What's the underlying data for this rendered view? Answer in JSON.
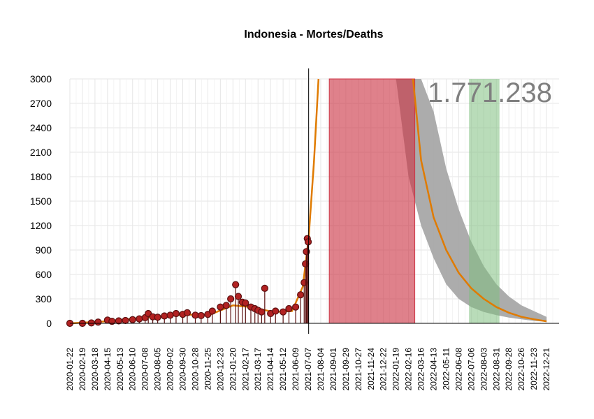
{
  "chart_data": {
    "type": "line",
    "title": "Indonesia - Mortes/Deaths",
    "xlabel": "",
    "ylabel": "",
    "ylim": [
      0,
      3000
    ],
    "yticks": [
      0,
      300,
      600,
      900,
      1200,
      1500,
      1800,
      2100,
      2400,
      2700,
      3000
    ],
    "xlim": [
      "2020-01-22",
      "2023-01-18"
    ],
    "xticks": [
      "2020-01-22",
      "2020-02-19",
      "2020-03-18",
      "2020-04-15",
      "2020-05-13",
      "2020-06-10",
      "2020-07-08",
      "2020-08-05",
      "2020-09-02",
      "2020-09-30",
      "2020-10-28",
      "2020-11-25",
      "2020-12-23",
      "2021-01-20",
      "2021-02-17",
      "2021-03-17",
      "2021-04-14",
      "2021-05-12",
      "2021-06-09",
      "2021-07-07",
      "2021-08-04",
      "2021-09-01",
      "2021-09-29",
      "2021-10-27",
      "2021-11-24",
      "2021-12-22",
      "2022-01-19",
      "2022-02-16",
      "2022-03-16",
      "2022-04-13",
      "2022-05-11",
      "2022-06-08",
      "2022-07-06",
      "2022-08-03",
      "2022-08-31",
      "2022-09-28",
      "2022-10-26",
      "2022-11-23",
      "2022-12-21"
    ],
    "grid": true,
    "annotation": "1.771.238",
    "current_date": "2021-07-08",
    "red_band": {
      "x": [
        "2021-08-23",
        "2022-03-02"
      ],
      "y": [
        0,
        3000
      ]
    },
    "green_band": {
      "x": [
        "2022-07-01",
        "2022-09-07"
      ],
      "y": [
        0,
        3000
      ]
    },
    "observed_points": [
      {
        "x": "2020-01-22",
        "y": 0
      },
      {
        "x": "2020-02-19",
        "y": 0
      },
      {
        "x": "2020-03-10",
        "y": 5
      },
      {
        "x": "2020-03-25",
        "y": 15
      },
      {
        "x": "2020-04-15",
        "y": 40
      },
      {
        "x": "2020-04-25",
        "y": 25
      },
      {
        "x": "2020-05-10",
        "y": 30
      },
      {
        "x": "2020-05-25",
        "y": 35
      },
      {
        "x": "2020-06-10",
        "y": 45
      },
      {
        "x": "2020-06-25",
        "y": 55
      },
      {
        "x": "2020-07-08",
        "y": 70
      },
      {
        "x": "2020-07-15",
        "y": 120
      },
      {
        "x": "2020-07-25",
        "y": 80
      },
      {
        "x": "2020-08-05",
        "y": 75
      },
      {
        "x": "2020-08-20",
        "y": 90
      },
      {
        "x": "2020-09-02",
        "y": 100
      },
      {
        "x": "2020-09-15",
        "y": 120
      },
      {
        "x": "2020-09-30",
        "y": 110
      },
      {
        "x": "2020-10-10",
        "y": 130
      },
      {
        "x": "2020-10-28",
        "y": 100
      },
      {
        "x": "2020-11-10",
        "y": 95
      },
      {
        "x": "2020-11-25",
        "y": 110
      },
      {
        "x": "2020-12-05",
        "y": 150
      },
      {
        "x": "2020-12-23",
        "y": 200
      },
      {
        "x": "2021-01-05",
        "y": 220
      },
      {
        "x": "2021-01-15",
        "y": 300
      },
      {
        "x": "2021-01-26",
        "y": 475
      },
      {
        "x": "2021-02-01",
        "y": 330
      },
      {
        "x": "2021-02-10",
        "y": 260
      },
      {
        "x": "2021-02-17",
        "y": 250
      },
      {
        "x": "2021-03-01",
        "y": 200
      },
      {
        "x": "2021-03-10",
        "y": 180
      },
      {
        "x": "2021-03-17",
        "y": 160
      },
      {
        "x": "2021-03-25",
        "y": 140
      },
      {
        "x": "2021-04-01",
        "y": 430
      },
      {
        "x": "2021-04-14",
        "y": 120
      },
      {
        "x": "2021-04-25",
        "y": 150
      },
      {
        "x": "2021-05-12",
        "y": 140
      },
      {
        "x": "2021-05-25",
        "y": 180
      },
      {
        "x": "2021-06-09",
        "y": 200
      },
      {
        "x": "2021-06-20",
        "y": 350
      },
      {
        "x": "2021-06-28",
        "y": 500
      },
      {
        "x": "2021-07-01",
        "y": 730
      },
      {
        "x": "2021-07-03",
        "y": 880
      },
      {
        "x": "2021-07-05",
        "y": 1040
      },
      {
        "x": "2021-07-07",
        "y": 1000
      }
    ],
    "fitted_curve": [
      {
        "x": "2020-01-22",
        "y": 0
      },
      {
        "x": "2020-04-15",
        "y": 25
      },
      {
        "x": "2020-07-08",
        "y": 70
      },
      {
        "x": "2020-09-30",
        "y": 105
      },
      {
        "x": "2020-12-01",
        "y": 110
      },
      {
        "x": "2021-01-20",
        "y": 220
      },
      {
        "x": "2021-03-01",
        "y": 200
      },
      {
        "x": "2021-04-20",
        "y": 140
      },
      {
        "x": "2021-06-01",
        "y": 150
      },
      {
        "x": "2021-06-25",
        "y": 450
      },
      {
        "x": "2021-07-08",
        "y": 1050
      },
      {
        "x": "2021-07-20",
        "y": 2000
      },
      {
        "x": "2021-07-30",
        "y": 3000
      }
    ],
    "forecast_curve": [
      {
        "x": "2022-02-26",
        "y": 3000
      },
      {
        "x": "2022-03-16",
        "y": 2000
      },
      {
        "x": "2022-04-13",
        "y": 1300
      },
      {
        "x": "2022-05-11",
        "y": 900
      },
      {
        "x": "2022-06-08",
        "y": 620
      },
      {
        "x": "2022-07-06",
        "y": 430
      },
      {
        "x": "2022-08-03",
        "y": 300
      },
      {
        "x": "2022-08-31",
        "y": 200
      },
      {
        "x": "2022-09-28",
        "y": 130
      },
      {
        "x": "2022-10-26",
        "y": 80
      },
      {
        "x": "2022-11-23",
        "y": 50
      },
      {
        "x": "2022-12-21",
        "y": 25
      }
    ],
    "forecast_band": [
      {
        "x": "2022-01-19",
        "lo": 3000,
        "hi": 3000
      },
      {
        "x": "2022-02-16",
        "lo": 1800,
        "hi": 3000
      },
      {
        "x": "2022-03-16",
        "lo": 1200,
        "hi": 3000
      },
      {
        "x": "2022-04-13",
        "lo": 800,
        "hi": 2600
      },
      {
        "x": "2022-05-11",
        "lo": 480,
        "hi": 1900
      },
      {
        "x": "2022-06-08",
        "lo": 300,
        "hi": 1400
      },
      {
        "x": "2022-07-06",
        "lo": 200,
        "hi": 1000
      },
      {
        "x": "2022-08-03",
        "lo": 140,
        "hi": 700
      },
      {
        "x": "2022-08-31",
        "lo": 100,
        "hi": 480
      },
      {
        "x": "2022-09-28",
        "lo": 70,
        "hi": 330
      },
      {
        "x": "2022-10-26",
        "lo": 50,
        "hi": 220
      },
      {
        "x": "2022-11-23",
        "lo": 30,
        "hi": 150
      },
      {
        "x": "2022-12-21",
        "lo": 20,
        "hi": 80
      }
    ],
    "colors": {
      "points": "#b22222",
      "points_outline": "#5a0f0f",
      "fit": "#e07b00",
      "red_band": "#cc3344",
      "green_band": "#7fbf7f",
      "forecast_band": "#a8a8a8",
      "grid": "#e6e6e6",
      "annotation": "#7f7f7f"
    }
  }
}
